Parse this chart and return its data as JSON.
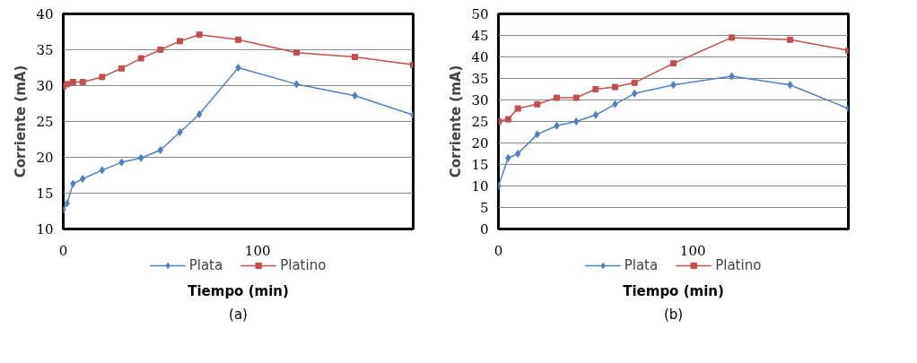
{
  "chart_data": [
    {
      "type": "line",
      "xlabel": "Tiempo (min)",
      "ylabel": "Corriente (mA)",
      "annotations": [
        "(a)"
      ],
      "xlim": [
        0,
        180
      ],
      "xticks": [
        0,
        100
      ],
      "ylim": [
        10,
        40
      ],
      "yticks": [
        10,
        15,
        20,
        25,
        30,
        35,
        40
      ],
      "grid": "y",
      "legend": "bottom",
      "series": [
        {
          "name": "Plata",
          "color": "#4f81bd",
          "marker": "diamond",
          "x": [
            0,
            2,
            5,
            10,
            20,
            30,
            40,
            50,
            60,
            70,
            90,
            120,
            150,
            180
          ],
          "values": [
            12.7,
            13.6,
            16.3,
            17.0,
            18.2,
            19.3,
            19.9,
            21.0,
            23.5,
            26.0,
            32.5,
            30.2,
            28.6,
            25.9
          ]
        },
        {
          "name": "Platino",
          "color": "#c0504d",
          "marker": "square",
          "x": [
            0,
            2,
            5,
            10,
            20,
            30,
            40,
            50,
            60,
            70,
            90,
            120,
            150,
            180
          ],
          "values": [
            29.9,
            30.2,
            30.5,
            30.5,
            31.2,
            32.4,
            33.8,
            35.0,
            36.2,
            37.1,
            36.4,
            34.6,
            34.0,
            32.9
          ]
        }
      ]
    },
    {
      "type": "line",
      "xlabel": "Tiempo (min)",
      "ylabel": "Corriente (mA)",
      "annotations": [
        "(b)"
      ],
      "xlim": [
        0,
        180
      ],
      "xticks": [
        0,
        100
      ],
      "ylim": [
        0,
        50
      ],
      "yticks": [
        0,
        5,
        10,
        15,
        20,
        25,
        30,
        35,
        40,
        45,
        50
      ],
      "grid": "y",
      "legend": "bottom",
      "series": [
        {
          "name": "Plata",
          "color": "#4f81bd",
          "marker": "diamond",
          "x": [
            0,
            5,
            10,
            20,
            30,
            40,
            50,
            60,
            70,
            90,
            120,
            150,
            180
          ],
          "values": [
            10,
            16.5,
            17.5,
            22,
            24,
            25,
            26.5,
            29,
            31.5,
            33.5,
            35.5,
            33.5,
            28
          ]
        },
        {
          "name": "Platino",
          "color": "#c0504d",
          "marker": "square",
          "x": [
            0,
            5,
            10,
            20,
            30,
            40,
            50,
            60,
            70,
            90,
            120,
            150,
            180
          ],
          "values": [
            25,
            25.5,
            28,
            29,
            30.5,
            30.5,
            32.5,
            33,
            34,
            38.5,
            44.5,
            44,
            41.5
          ]
        }
      ]
    }
  ]
}
